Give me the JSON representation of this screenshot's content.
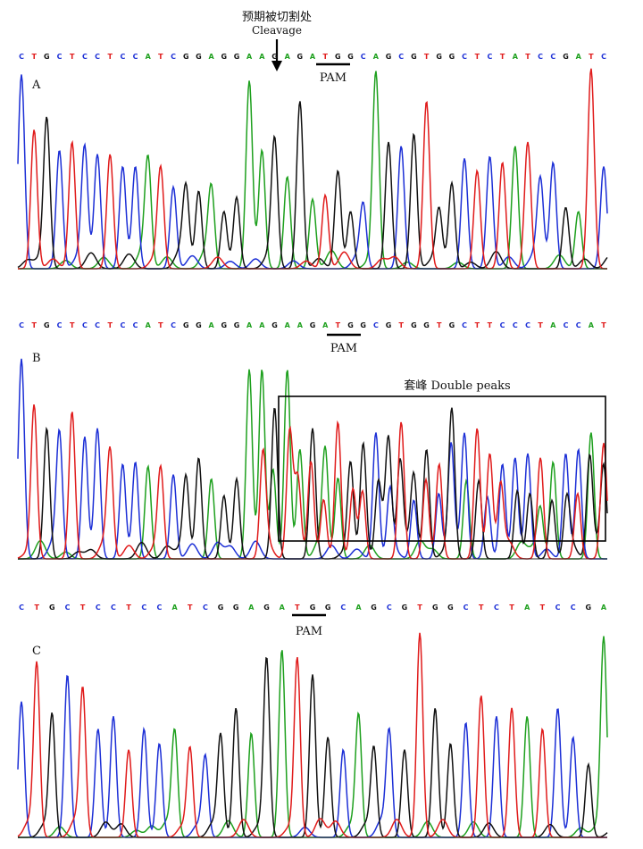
{
  "figure": {
    "cleavage_label_cn": "预期被切割处",
    "cleavage_label_en": "Cleavage",
    "pam_label": "PAM",
    "double_peaks_label": "套峰 Double peaks"
  },
  "colors": {
    "A": "#1ea01e",
    "C": "#1c2fd6",
    "G": "#111111",
    "T": "#e01b1b"
  },
  "panels": [
    {
      "id": "A",
      "label": "A",
      "sequence": "CTGCTCCTCCATCGGAGGAAGAGATGGCAGCGTGGCTCTATCCGATC",
      "peak_heights": [
        0.95,
        0.68,
        0.72,
        0.58,
        0.62,
        0.58,
        0.56,
        0.56,
        0.5,
        0.5,
        0.52,
        0.48,
        0.4,
        0.38,
        0.38,
        0.38,
        0.28,
        0.35,
        0.92,
        0.58,
        0.62,
        0.45,
        0.82,
        0.34,
        0.36,
        0.48,
        0.28,
        0.3,
        0.95,
        0.62,
        0.6,
        0.66,
        0.82,
        0.28,
        0.42,
        0.54,
        0.48,
        0.55,
        0.52,
        0.6,
        0.62,
        0.42,
        0.52,
        0.3,
        0.28,
        0.98,
        0.5
      ]
    },
    {
      "id": "B",
      "label": "B",
      "sequence": "CTGCTCCTCCATCGGAGGAAGAAGATGGCGTGGTGCTTCCCTACCAT",
      "peak_heights": [
        0.95,
        0.72,
        0.62,
        0.58,
        0.7,
        0.58,
        0.62,
        0.5,
        0.45,
        0.46,
        0.44,
        0.42,
        0.4,
        0.38,
        0.48,
        0.38,
        0.3,
        0.38,
        0.9,
        0.9,
        0.72,
        0.9,
        0.52,
        0.62,
        0.5,
        0.65,
        0.45,
        0.55,
        0.6,
        0.55,
        0.65,
        0.38,
        0.52,
        0.45,
        0.7,
        0.58,
        0.62,
        0.5,
        0.45,
        0.48,
        0.5,
        0.48,
        0.46,
        0.5,
        0.52,
        0.6,
        0.55
      ],
      "double_peak_region": [
        19,
        46
      ]
    },
    {
      "id": "C",
      "label": "C",
      "sequence": "CTGCTCCTCCATCGGAGATGGCAGCGTGGCTCTATCCGA",
      "peak_heights": [
        0.65,
        0.82,
        0.58,
        0.78,
        0.7,
        0.52,
        0.58,
        0.42,
        0.52,
        0.45,
        0.5,
        0.42,
        0.38,
        0.48,
        0.62,
        0.5,
        0.85,
        0.9,
        0.85,
        0.78,
        0.48,
        0.42,
        0.58,
        0.42,
        0.5,
        0.42,
        0.98,
        0.62,
        0.45,
        0.55,
        0.68,
        0.58,
        0.62,
        0.58,
        0.52,
        0.62,
        0.48,
        0.35,
        0.95
      ]
    }
  ]
}
